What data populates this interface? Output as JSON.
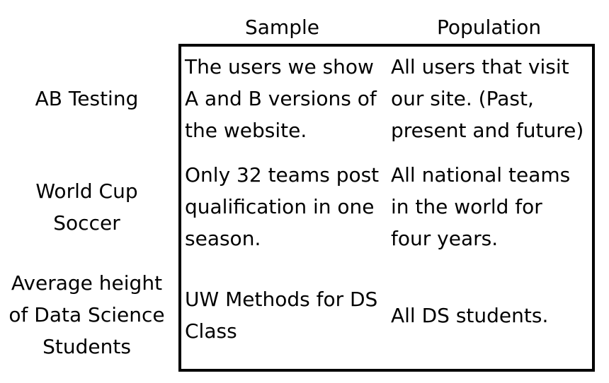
{
  "headers": {
    "sample": "Sample",
    "population": "Population"
  },
  "rows": [
    {
      "label": [
        "AB Testing"
      ],
      "sample": [
        "The users we show",
        "A and B versions of",
        "the website."
      ],
      "population": [
        "All users that visit",
        "our site. (Past,",
        "present and future)"
      ]
    },
    {
      "label": [
        "World Cup",
        "Soccer"
      ],
      "sample": [
        "Only 32 teams post",
        "qualification in one",
        "season."
      ],
      "population": [
        "All national teams",
        "in the world for",
        "four years."
      ]
    },
    {
      "label": [
        "Average height",
        "of Data Science",
        "Students"
      ],
      "sample": [
        "UW Methods for DS",
        "Class"
      ],
      "population": [
        "All DS students."
      ]
    }
  ]
}
